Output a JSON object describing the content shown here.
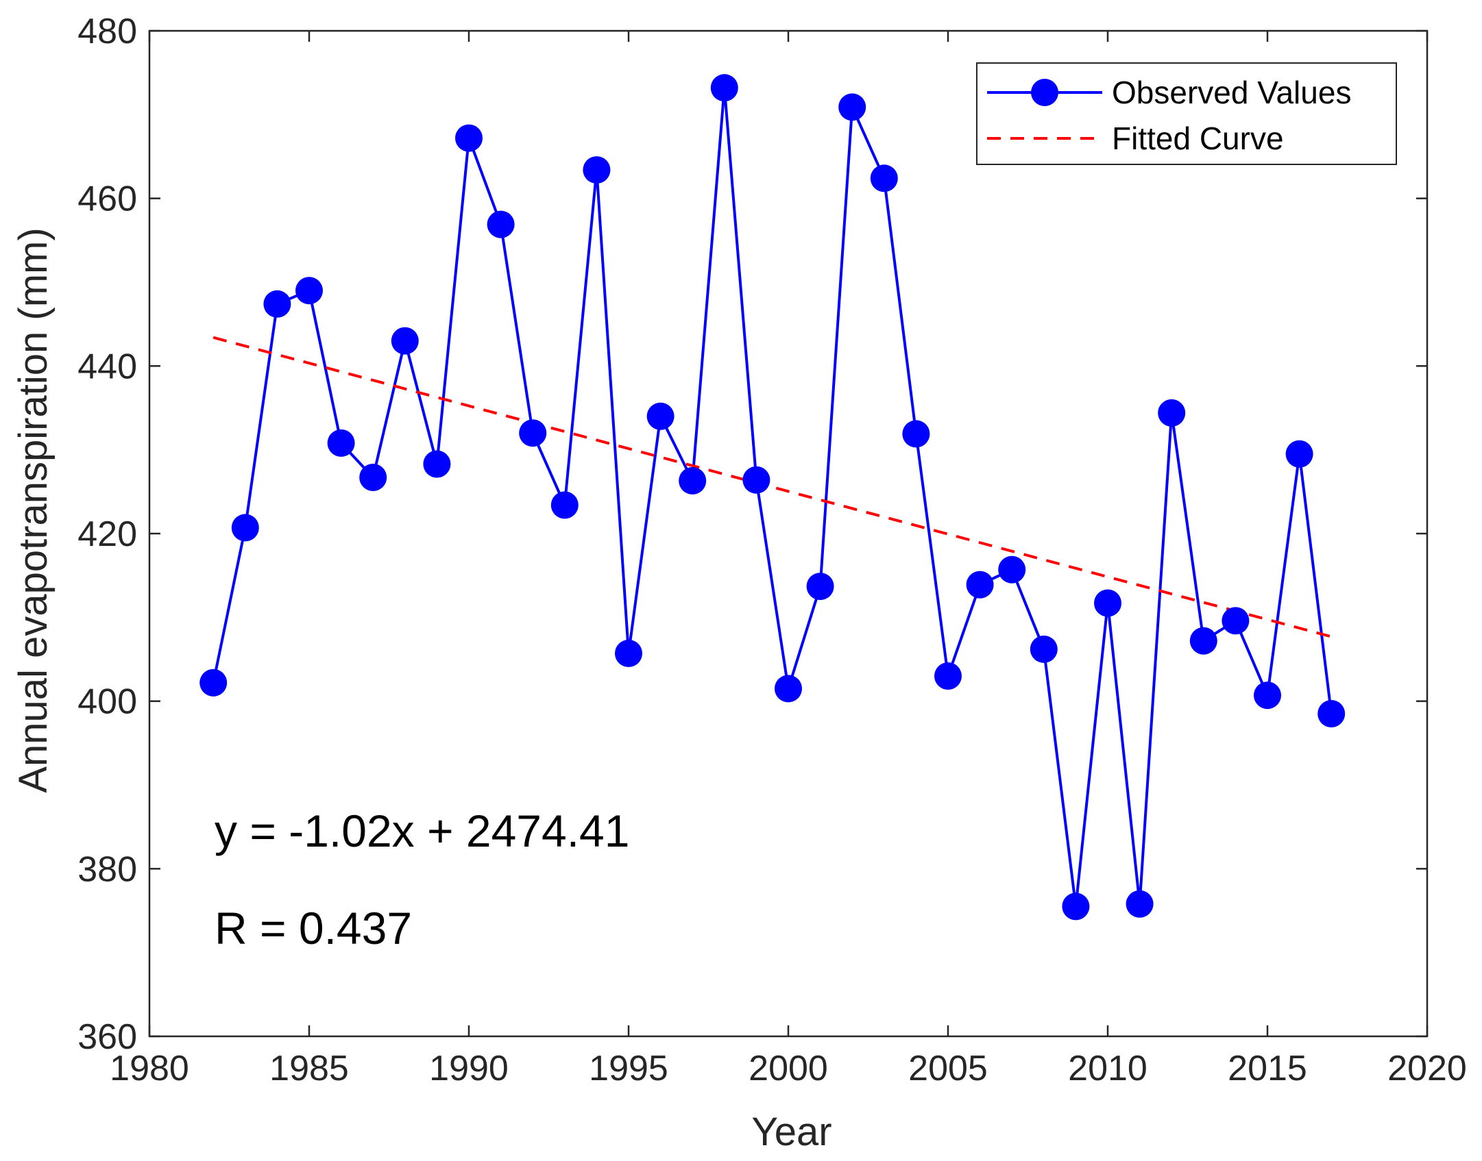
{
  "chart_data": {
    "type": "line",
    "xlabel": "Year",
    "ylabel": "Annual evapotranspiration (mm)",
    "xlim": [
      1980,
      2020
    ],
    "ylim": [
      360,
      480
    ],
    "xticks": [
      1980,
      1985,
      1990,
      1995,
      2000,
      2005,
      2010,
      2015,
      2020
    ],
    "yticks": [
      360,
      380,
      400,
      420,
      440,
      460,
      480
    ],
    "grid": false,
    "legend_position": "top-right",
    "series": [
      {
        "name": "Observed Values",
        "style": "solid-line-with-circle-markers",
        "color": "#0000ff",
        "x": [
          1982,
          1983,
          1984,
          1985,
          1986,
          1987,
          1988,
          1989,
          1990,
          1991,
          1992,
          1993,
          1994,
          1995,
          1996,
          1997,
          1998,
          1999,
          2000,
          2001,
          2002,
          2003,
          2004,
          2005,
          2006,
          2007,
          2008,
          2009,
          2010,
          2011,
          2012,
          2013,
          2014,
          2015,
          2016,
          2017
        ],
        "values": [
          402.2,
          420.7,
          447.4,
          449.0,
          430.8,
          426.7,
          443.0,
          428.3,
          467.2,
          456.9,
          432.0,
          423.4,
          463.4,
          405.7,
          434.0,
          426.3,
          473.2,
          426.4,
          401.5,
          413.7,
          470.9,
          462.4,
          431.9,
          403.0,
          413.9,
          415.7,
          406.2,
          375.5,
          411.7,
          375.8,
          434.4,
          407.2,
          409.6,
          400.7,
          429.5,
          398.5
        ]
      },
      {
        "name": "Fitted Curve",
        "style": "dashed-line",
        "color": "#ff0000",
        "x": [
          1982,
          2017
        ],
        "values": [
          443.4,
          407.7
        ]
      }
    ],
    "annotations": [
      "y = -1.02x + 2474.41",
      "R = 0.437"
    ]
  }
}
